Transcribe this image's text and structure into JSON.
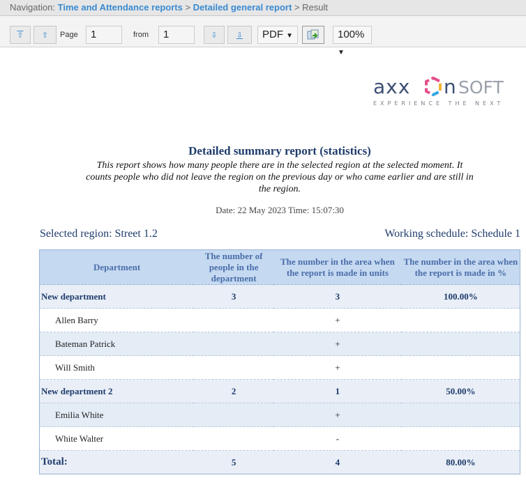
{
  "nav": {
    "prefix": "Navigation:",
    "crumb1": "Time and Attendance reports",
    "sep": ">",
    "crumb2": "Detailed general report",
    "current": "Result"
  },
  "toolbar": {
    "first_icon": "⇧",
    "prev_icon": "⇧",
    "page_label": "Page",
    "page_value": "1",
    "from_label": "from",
    "from_value": "1",
    "next_icon": "⇩",
    "last_icon": "⇩",
    "format": "PDF",
    "zoom": "100%"
  },
  "logo": {
    "text": "axxonsoft",
    "tagline": "EXPERIENCE THE NEXT"
  },
  "report": {
    "title": "Detailed summary report (statistics)",
    "description": "This report shows how many people there are in the selected region at the selected moment. It counts people who did not leave the region on the previous day or who came earlier and are still in the region.",
    "date": "Date: 22 May 2023 Time: 15:07:30",
    "region": "Selected region: Street 1.2",
    "schedule": "Working schedule: Schedule 1"
  },
  "table": {
    "headers": [
      "Department",
      "The number of people in the department",
      "The number in the area when the report is made in units",
      "The number in the area when the report is made in %"
    ],
    "rows": [
      {
        "type": "dept",
        "cells": [
          "New department",
          "3",
          "3",
          "100.00%"
        ]
      },
      {
        "type": "emp",
        "cells": [
          "Allen Barry",
          "",
          "+",
          ""
        ]
      },
      {
        "type": "emp alt",
        "cells": [
          "Bateman Patrick",
          "",
          "+",
          ""
        ]
      },
      {
        "type": "emp",
        "cells": [
          "Will Smith",
          "",
          "+",
          ""
        ]
      },
      {
        "type": "dept",
        "cells": [
          "New department 2",
          "2",
          "1",
          "50.00%"
        ]
      },
      {
        "type": "emp alt",
        "cells": [
          "Emilia White",
          "",
          "+",
          ""
        ]
      },
      {
        "type": "emp",
        "cells": [
          "White Walter",
          "",
          "-",
          ""
        ]
      },
      {
        "type": "total",
        "cells": [
          "Total:",
          "5",
          "4",
          "80.00%"
        ]
      }
    ]
  }
}
